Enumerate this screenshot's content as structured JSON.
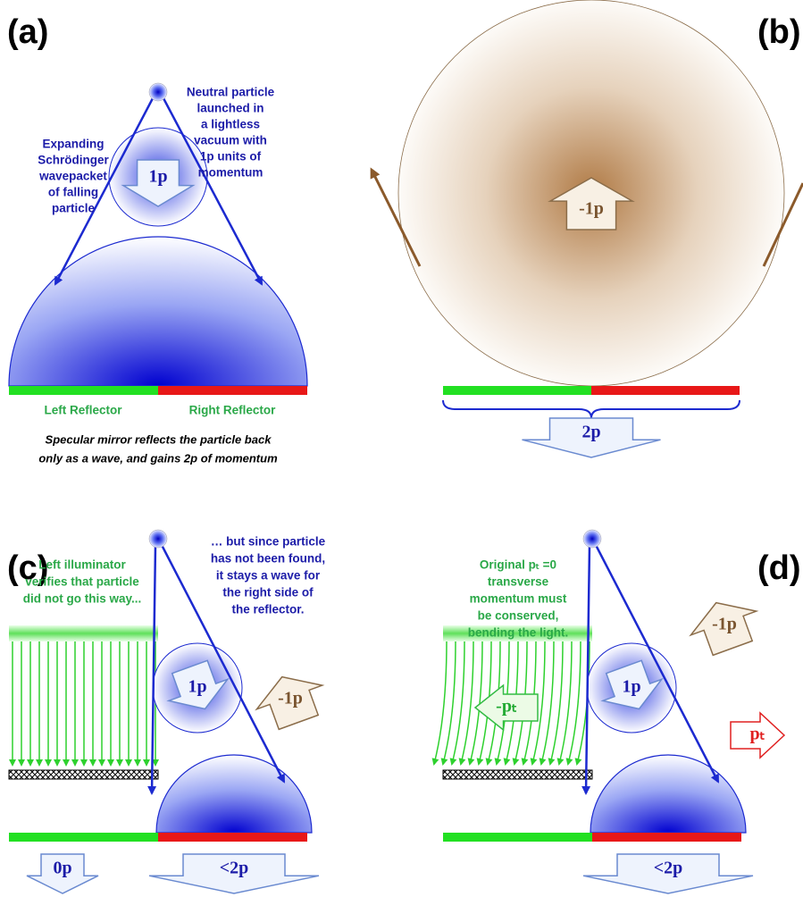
{
  "panel_a": {
    "label": "(a)",
    "particle_note": [
      "Neutral particle",
      "launched in",
      "a lightless",
      "vacuum with",
      "1p units of",
      "momentum"
    ],
    "wavepacket_note": [
      "Expanding",
      "Schrödinger",
      "wavepacket",
      "of falling",
      "particle"
    ],
    "momentum": "1p",
    "left_reflector": "Left Reflector",
    "right_reflector": "Right Reflector",
    "caption": [
      "Specular mirror reflects the particle back",
      "only as a wave, and gains 2p of momentum"
    ]
  },
  "panel_b": {
    "label": "(b)",
    "recoil": "-1p",
    "reflector_momentum": "2p"
  },
  "panel_c": {
    "label": "(c)",
    "wave_note": [
      "… but since particle",
      "has not been found,",
      "it stays a wave for",
      "the right side of",
      "the reflector."
    ],
    "illuminator_note": [
      "Left illuminator",
      "verifies that particle",
      "did not go this way..."
    ],
    "momentum": "1p",
    "recoil": "-1p",
    "left_momentum": "0p",
    "right_momentum": "<2p"
  },
  "panel_d": {
    "label": "(d)",
    "conservation_note": [
      "Original pₜ =0",
      "transverse",
      "momentum must",
      "be conserved,",
      "bending the light."
    ],
    "momentum": "1p",
    "recoil": "-1p",
    "left_transverse": "-pₜ",
    "right_transverse": "pₜ",
    "right_momentum": "<2p"
  }
}
